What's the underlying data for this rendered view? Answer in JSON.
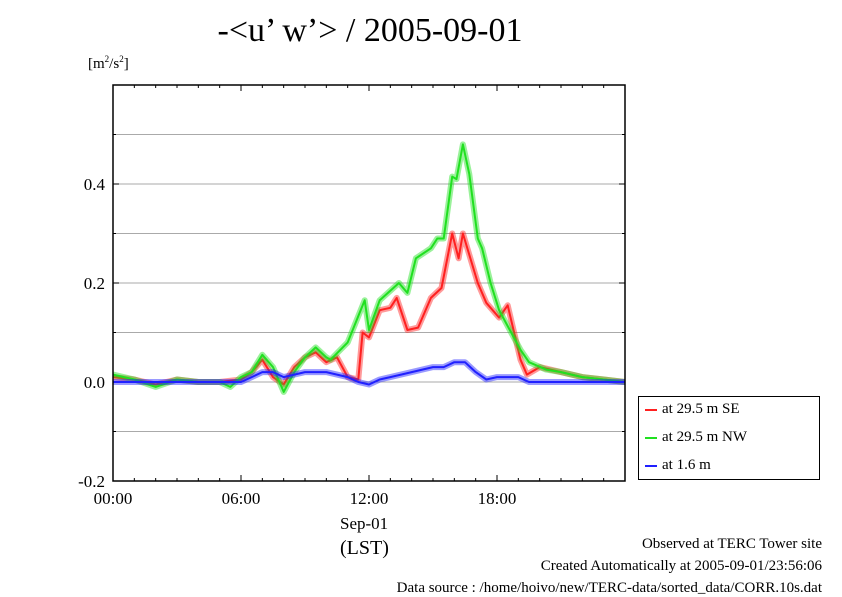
{
  "chart_data": {
    "type": "line",
    "title": "-<u’ w’> / 2005-09-01",
    "ylabel_unit": "[m2/s2]",
    "xlabel": "Sep-01",
    "xlabel2": "(LST)",
    "xlim": [
      0,
      24
    ],
    "ylim": [
      -0.2,
      0.6
    ],
    "x_ticks": [
      {
        "v": 0,
        "label": "00:00"
      },
      {
        "v": 6,
        "label": "06:00"
      },
      {
        "v": 12,
        "label": "12:00"
      },
      {
        "v": 18,
        "label": "18:00"
      }
    ],
    "y_ticks": [
      {
        "v": -0.2,
        "label": "-0.2"
      },
      {
        "v": 0.0,
        "label": "0.0"
      },
      {
        "v": 0.2,
        "label": "0.2"
      },
      {
        "v": 0.4,
        "label": "0.4"
      }
    ],
    "grid": true,
    "legend_position": "outside-right-bottom",
    "series": [
      {
        "name": "at 29.5 m SE",
        "color": "#ff2020",
        "x": [
          0,
          1,
          2,
          3,
          4,
          5,
          6,
          6.5,
          7,
          7.5,
          8,
          8.5,
          9,
          9.5,
          10,
          10.5,
          11,
          11.5,
          11.7,
          12,
          12.5,
          13,
          13.3,
          13.8,
          14.3,
          14.9,
          15.4,
          15.9,
          16.2,
          16.4,
          17.1,
          17.5,
          18.1,
          18.5,
          19.1,
          19.4,
          20,
          21,
          22,
          23,
          24
        ],
        "y": [
          0.01,
          0.005,
          -0.005,
          0.005,
          0.0,
          0.0,
          0.005,
          0.02,
          0.045,
          0.01,
          -0.005,
          0.03,
          0.05,
          0.06,
          0.04,
          0.05,
          0.01,
          0.005,
          0.1,
          0.09,
          0.145,
          0.15,
          0.17,
          0.105,
          0.11,
          0.17,
          0.19,
          0.3,
          0.25,
          0.3,
          0.2,
          0.16,
          0.13,
          0.155,
          0.045,
          0.015,
          0.03,
          0.02,
          0.01,
          0.005,
          0.0
        ]
      },
      {
        "name": "at 29.5 m NW",
        "color": "#20e020",
        "x": [
          0,
          1,
          2,
          3,
          4,
          5,
          5.5,
          6,
          6.5,
          7,
          7.5,
          8,
          8.5,
          9,
          9.5,
          10,
          10.2,
          11,
          11.8,
          12,
          12.5,
          13.4,
          13.8,
          14.2,
          14.9,
          15.2,
          15.5,
          15.9,
          16.1,
          16.4,
          16.7,
          17.1,
          17.3,
          17.7,
          18.1,
          18.6,
          19.1,
          19.5,
          20.3,
          21,
          22,
          23,
          24
        ],
        "y": [
          0.015,
          0.005,
          -0.01,
          0.005,
          0.0,
          0.0,
          -0.01,
          0.01,
          0.02,
          0.055,
          0.03,
          -0.02,
          0.02,
          0.05,
          0.07,
          0.05,
          0.045,
          0.08,
          0.165,
          0.105,
          0.165,
          0.2,
          0.18,
          0.25,
          0.27,
          0.29,
          0.29,
          0.415,
          0.41,
          0.48,
          0.42,
          0.29,
          0.27,
          0.2,
          0.145,
          0.105,
          0.065,
          0.04,
          0.025,
          0.02,
          0.01,
          0.005,
          0.0
        ]
      },
      {
        "name": "at 1.6 m",
        "color": "#2020ff",
        "x": [
          0,
          2,
          4,
          6,
          6.5,
          7,
          7.5,
          8,
          8.5,
          9,
          10,
          11,
          11.5,
          12,
          12.5,
          13,
          14,
          14.5,
          15,
          15.5,
          16,
          16.5,
          17,
          17.5,
          18,
          19,
          19.5,
          20,
          22,
          24
        ],
        "y": [
          0.0,
          0.0,
          0.0,
          0.0,
          0.01,
          0.02,
          0.02,
          0.01,
          0.015,
          0.02,
          0.02,
          0.01,
          0.0,
          -0.005,
          0.005,
          0.01,
          0.02,
          0.025,
          0.03,
          0.03,
          0.04,
          0.04,
          0.02,
          0.005,
          0.01,
          0.01,
          0.0,
          0.0,
          0.0,
          0.0
        ]
      }
    ]
  },
  "footer": {
    "line1": "Observed at TERC Tower site",
    "line2": "Created Automatically at 2005-09-01/23:56:06",
    "line3": "Data source : /home/hoivo/new/TERC-data/sorted_data/CORR.10s.dat"
  }
}
